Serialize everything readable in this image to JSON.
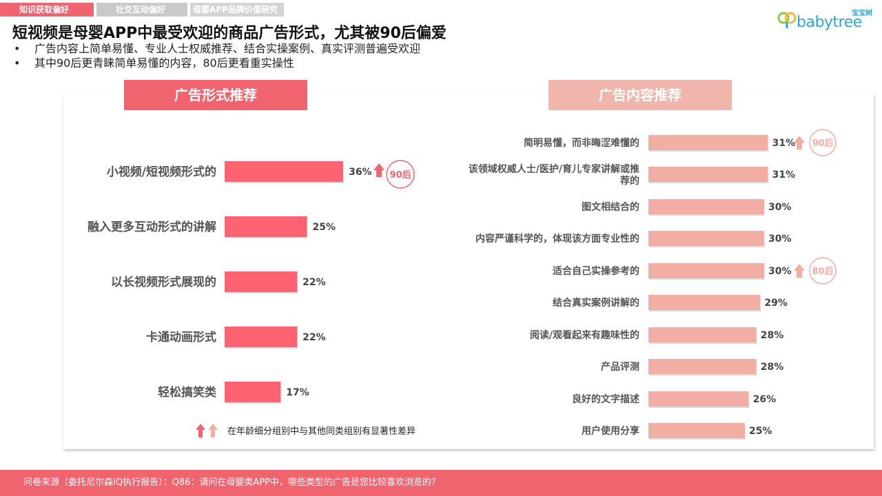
{
  "tabs": [
    "知识获取偏好",
    "社交互动偏好",
    "母婴APP品牌价值研究"
  ],
  "logo": {
    "text_en": "babytree",
    "text_cn": "宝宝树"
  },
  "title": "短视频是母婴APP中最受欢迎的商品广告形式，尤其被90后偏爱",
  "bullets": [
    "广告内容上简单易懂、专业人士权威推荐、结合实操案例、真实评测普遍受欢迎",
    "其中90后更青睐简单易懂的内容，80后更看重实操性"
  ],
  "bullet_symbol": "•",
  "legend_text": "在年龄细分组别中与其他同类组别有显著性差异",
  "footer": "问卷来源（委托尼尔森IQ执行报告）：Q86：请问在母婴类APP中，哪些类型的广告是您比较喜欢浏览的？",
  "colors": {
    "accent": "#f0646f",
    "light": "#f0b6ab",
    "left_bar": "#fd6371",
    "right_bar": "#f2aea4"
  },
  "chart_data": [
    {
      "type": "bar",
      "orientation": "horizontal",
      "title": "广告形式推荐",
      "categories": [
        "小视频/短视频形式的",
        "融入更多互动形式的讲解",
        "以长视频形式展现的",
        "卡通动画形式",
        "轻松搞笑类"
      ],
      "values": [
        36,
        25,
        22,
        22,
        17
      ],
      "value_labels": [
        "36%",
        "25%",
        "22%",
        "22%",
        "17%"
      ],
      "unit": "%",
      "annotations": [
        {
          "category": "小视频/短视频形式的",
          "label": "90后",
          "arrow": "up"
        }
      ]
    },
    {
      "type": "bar",
      "orientation": "horizontal",
      "title": "广告内容推荐",
      "categories": [
        "简明易懂，而非晦涩难懂的",
        "该领域权威人士/医护/育儿专家讲解或推荐的",
        "图文相结合的",
        "内容严谨科学的，体现该方面专业性的",
        "适合自己实操参考的",
        "结合真实案例讲解的",
        "阅读/观看起来有趣味性的",
        "产品评测",
        "良好的文字描述",
        "用户使用分享"
      ],
      "category_lines": [
        [
          "简明易懂，而非晦涩难懂的"
        ],
        [
          "该领域权威人士/医护/育儿专家讲解或推",
          "荐的"
        ],
        [
          "图文相结合的"
        ],
        [
          "内容严谨科学的，体现该方面专业性的"
        ],
        [
          "适合自己实操参考的"
        ],
        [
          "结合真实案例讲解的"
        ],
        [
          "阅读/观看起来有趣味性的"
        ],
        [
          "产品评测"
        ],
        [
          "良好的文字描述"
        ],
        [
          "用户使用分享"
        ]
      ],
      "values": [
        31,
        31,
        30,
        30,
        30,
        29,
        28,
        28,
        26,
        25
      ],
      "value_labels": [
        "31%",
        "31%",
        "30%",
        "30%",
        "30%",
        "29%",
        "28%",
        "28%",
        "26%",
        "25%"
      ],
      "unit": "%",
      "annotations": [
        {
          "category": "简明易懂，而非晦涩难懂的",
          "label": "90后",
          "arrow": "up"
        },
        {
          "category": "适合自己实操参考的",
          "label": "80后",
          "arrow": "up"
        }
      ]
    }
  ]
}
